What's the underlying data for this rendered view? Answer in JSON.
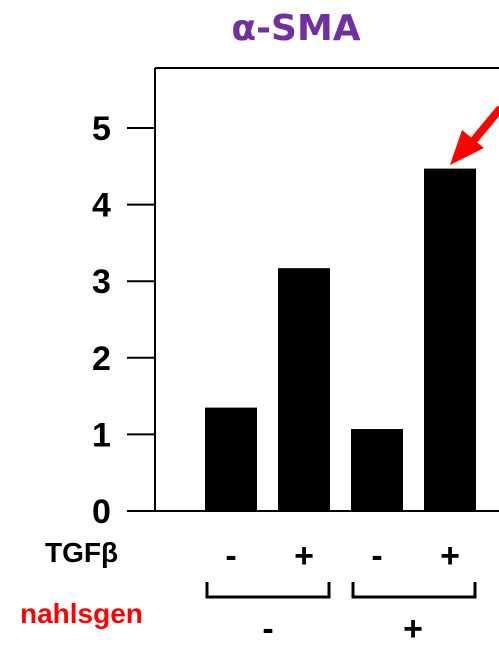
{
  "colors": {
    "title": "#7030a0",
    "bars": "#000000",
    "axis": "#000000",
    "nahlsgen_label": "#ff0000",
    "arrow": "#ff0000"
  },
  "chart_data": {
    "type": "bar",
    "title": "α-SMA",
    "xlabel": "",
    "ylabel": "",
    "ylim": [
      0,
      5.7
    ],
    "yticks": [
      "0",
      "1",
      "2",
      "3",
      "4",
      "5"
    ],
    "grid": false,
    "legend": "none",
    "categories": [
      "TGFβ - / nahlsgen -",
      "TGFβ + / nahlsgen -",
      "TGFβ - / nahlsgen +",
      "TGFβ + / nahlsgen +"
    ],
    "values": [
      1.35,
      3.17,
      1.07,
      4.47
    ],
    "highlight_index": 3,
    "factors": [
      {
        "name": "TGFβ",
        "levels": [
          "-",
          "+",
          "-",
          "+"
        ]
      },
      {
        "name": "nahlsgen",
        "levels": [
          "-",
          "+"
        ]
      }
    ]
  }
}
